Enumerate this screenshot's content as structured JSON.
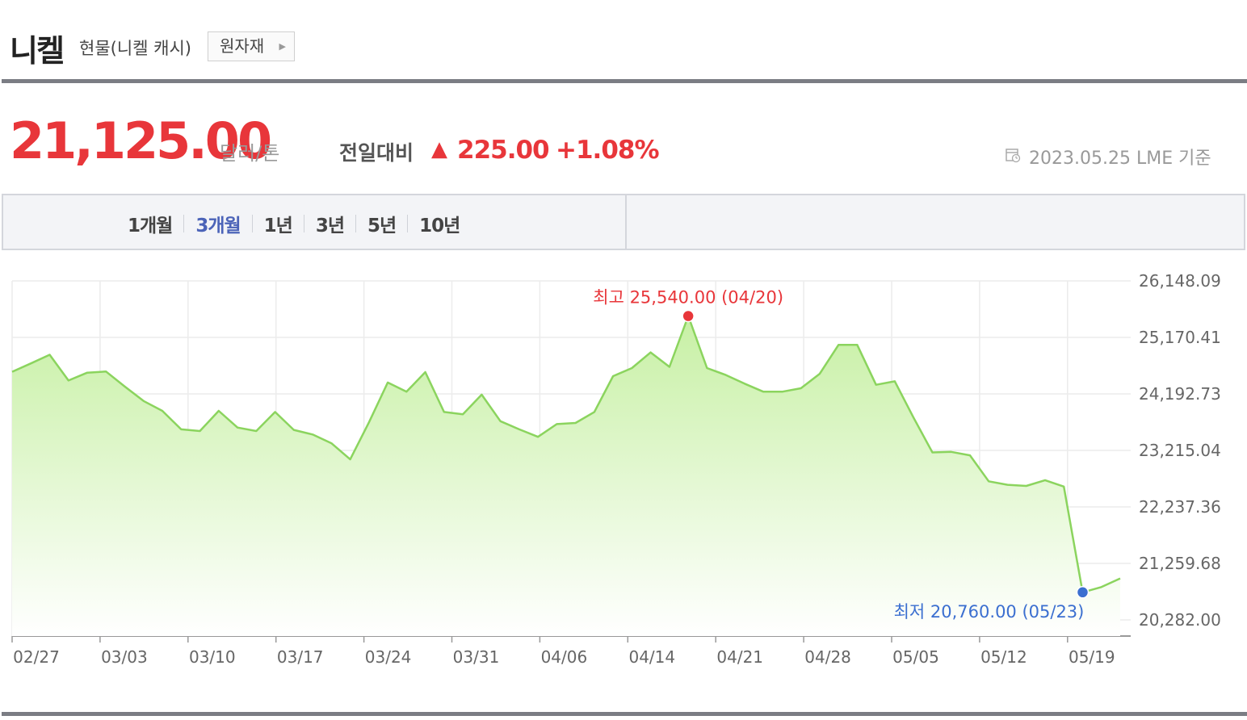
{
  "header": {
    "title": "니켈",
    "subtitle": "현물(니켈 캐시)",
    "category_button": "원자재",
    "category_arrow_icon": "caret-right-icon"
  },
  "quote": {
    "price": "21,125.00",
    "unit": "달러/톤",
    "compare_label": "전일대비",
    "direction_icon": "up-triangle-icon",
    "direction_symbol": "▲",
    "change": "225.00",
    "change_pct": "+1.08%",
    "date_icon": "calendar-icon",
    "date_text": "2023.05.25 LME 기준"
  },
  "period_tabs": [
    {
      "label": "1개월",
      "active": false
    },
    {
      "label": "3개월",
      "active": true
    },
    {
      "label": "1년",
      "active": false
    },
    {
      "label": "3년",
      "active": false
    },
    {
      "label": "5년",
      "active": false
    },
    {
      "label": "10년",
      "active": false
    }
  ],
  "colors": {
    "up": "#e8363a",
    "tab_active": "#4b63b8",
    "line": "#8bd45e",
    "fill_top": "#c7f0a4",
    "fill_bottom": "#ffffff",
    "max_point": "#e8363a",
    "min_point": "#3b6fd0"
  },
  "chart_data": {
    "type": "area",
    "ylim": [
      20282.0,
      26148.09
    ],
    "y_ticks": [
      "26,148.09",
      "25,170.41",
      "24,192.73",
      "23,215.04",
      "22,237.36",
      "21,259.68",
      "20,282.00"
    ],
    "x_ticks": [
      "02/27",
      "03/03",
      "03/10",
      "03/17",
      "03/24",
      "03/31",
      "04/06",
      "04/14",
      "04/21",
      "04/28",
      "05/05",
      "05/12",
      "05/19"
    ],
    "grid": true,
    "series": [
      {
        "values": [
          24575,
          24720,
          24870,
          24425,
          24560,
          24580,
          24320,
          24070,
          23900,
          23580,
          23550,
          23900,
          23610,
          23550,
          23880,
          23570,
          23490,
          23340,
          23060,
          23700,
          24390,
          24230,
          24570,
          23880,
          23840,
          24180,
          23720,
          23580,
          23450,
          23670,
          23690,
          23880,
          24500,
          24640,
          24910,
          24660,
          25540,
          24640,
          24520,
          24370,
          24230,
          24230,
          24290,
          24540,
          25040,
          25040,
          24350,
          24410,
          23780,
          23180,
          23190,
          23130,
          22680,
          22620,
          22600,
          22700,
          22590,
          20760,
          20850,
          21000
        ]
      }
    ],
    "max_label": "최고 25,540.00 (04/20)",
    "min_label": "최저 20,760.00 (05/23)",
    "max_value": 25540,
    "min_value": 20760
  }
}
